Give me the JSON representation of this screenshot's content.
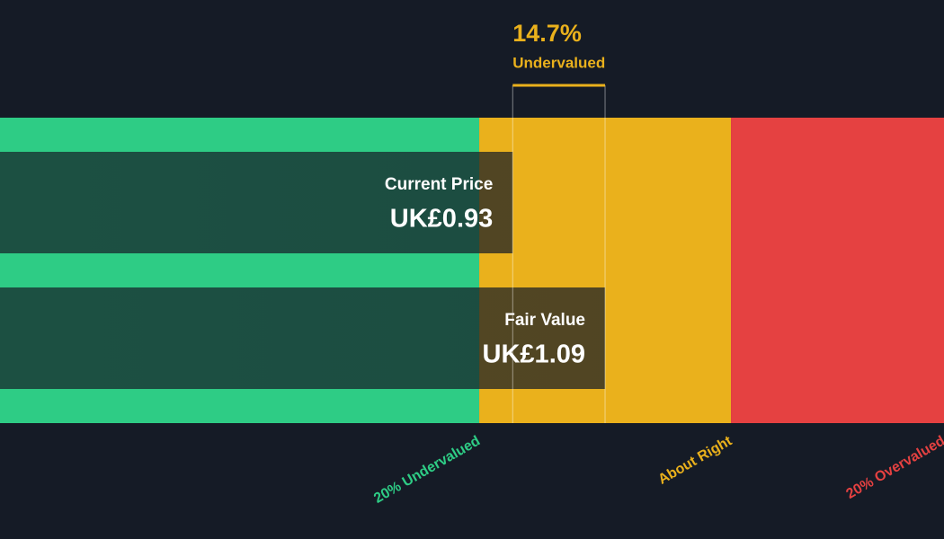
{
  "chart_data": {
    "type": "valuation",
    "xlim": [
      0.042,
      1.677
    ],
    "bars": [
      {
        "name": "Current Price",
        "value": 0.93,
        "value_label": "UK£0.93"
      },
      {
        "name": "Fair Value",
        "value": 1.09,
        "value_label": "UK£1.09"
      }
    ],
    "discount": {
      "value": 14.7,
      "label": "14.7%",
      "status": "Undervalued",
      "color": "#eab11c"
    },
    "zones": [
      {
        "name": "20% Undervalued",
        "color": "#2ecc85",
        "range": [
          0.042,
          0.872
        ]
      },
      {
        "name": "About Right",
        "color": "#eab11c",
        "range": [
          0.872,
          1.308
        ]
      },
      {
        "name": "20% Overvalued",
        "color": "#e54141",
        "range": [
          1.308,
          1.677
        ]
      }
    ]
  }
}
